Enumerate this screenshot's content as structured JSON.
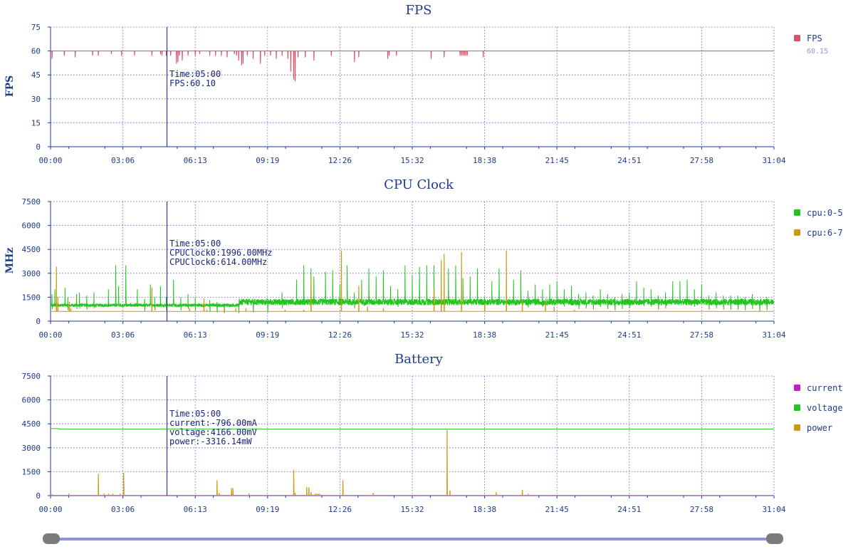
{
  "time_axis": {
    "ticks": [
      "00:00",
      "03:06",
      "06:13",
      "09:19",
      "12:26",
      "15:32",
      "18:38",
      "21:45",
      "24:51",
      "27:58",
      "31:04"
    ],
    "max_seconds": 1864
  },
  "cursor": {
    "time_seconds": 300
  },
  "colors": {
    "fps": "#d9506a",
    "cpu0_5": "#22c41e",
    "cpu6_7": "#cc9a10",
    "current": "#c81ac8",
    "voltage": "#22c41e",
    "power": "#cc9a10",
    "cursor": "#1a237e",
    "axis": "#1f3b8c"
  },
  "chart_data": [
    {
      "type": "line",
      "title": "FPS",
      "ylabel": "FPS",
      "ylim": [
        0,
        75
      ],
      "yticks": [
        "75",
        "60",
        "45",
        "30",
        "15",
        "0"
      ],
      "grid": true,
      "legend_position": "right",
      "series": [
        {
          "name": "FPS",
          "baseline": 60,
          "dips": [
            [
              10,
              55
            ],
            [
              95,
              57
            ],
            [
              170,
              56
            ],
            [
              290,
              57
            ],
            [
              330,
              57
            ],
            [
              420,
              58
            ],
            [
              490,
              57
            ],
            [
              580,
              57
            ],
            [
              700,
              57
            ],
            [
              760,
              58
            ],
            [
              770,
              57
            ],
            [
              800,
              57
            ],
            [
              830,
              57
            ],
            [
              870,
              52
            ],
            [
              880,
              53
            ],
            [
              890,
              57
            ],
            [
              910,
              54
            ],
            [
              950,
              57
            ],
            [
              1000,
              57
            ],
            [
              1030,
              58
            ],
            [
              1100,
              57
            ],
            [
              1140,
              57
            ],
            [
              1180,
              57
            ],
            [
              1220,
              56
            ],
            [
              1270,
              58
            ],
            [
              1285,
              57
            ],
            [
              1300,
              54
            ],
            [
              1320,
              51
            ],
            [
              1330,
              52
            ],
            [
              1360,
              57
            ],
            [
              1400,
              55
            ],
            [
              1450,
              52
            ],
            [
              1480,
              57
            ],
            [
              1520,
              57
            ],
            [
              1560,
              55
            ],
            [
              1600,
              57
            ],
            [
              1640,
              55
            ],
            [
              1660,
              47
            ],
            [
              1680,
              42
            ],
            [
              1690,
              41
            ],
            [
              1710,
              56
            ],
            [
              1760,
              56
            ],
            [
              1820,
              54
            ],
            [
              1940,
              57
            ],
            [
              2100,
              53
            ],
            [
              2130,
              56
            ],
            [
              2330,
              55
            ],
            [
              2340,
              57
            ],
            [
              2390,
              57
            ],
            [
              2630,
              55
            ],
            [
              2720,
              56
            ],
            [
              2830,
              57
            ],
            [
              2840,
              57
            ],
            [
              2850,
              57
            ],
            [
              2860,
              57
            ],
            [
              2870,
              57
            ],
            [
              2880,
              57
            ],
            [
              2990,
              56
            ]
          ]
        }
      ],
      "legend_value": "60.15",
      "tooltip": [
        "Time:05:00",
        "FPS:60.10"
      ]
    },
    {
      "type": "line",
      "title": "CPU Clock",
      "ylabel": "MHz",
      "ylim": [
        0,
        7500
      ],
      "yticks": [
        "7500",
        "6000",
        "4500",
        "3000",
        "1500",
        "0"
      ],
      "grid": true,
      "legend_position": "right",
      "series": [
        {
          "name": "cpu:0-5",
          "baseline": 900,
          "base_high": 1300,
          "peaks": [
            [
              10,
              1700
            ],
            [
              30,
              2000
            ],
            [
              100,
              2100
            ],
            [
              120,
              1500
            ],
            [
              180,
              1700
            ],
            [
              200,
              1800
            ],
            [
              250,
              1600
            ],
            [
              300,
              1800
            ],
            [
              400,
              2000
            ],
            [
              450,
              3500
            ],
            [
              470,
              2200
            ],
            [
              520,
              3500
            ],
            [
              600,
              2000
            ],
            [
              650,
              1400
            ],
            [
              690,
              2300
            ],
            [
              720,
              1500
            ],
            [
              760,
              2200
            ],
            [
              800,
              1500
            ],
            [
              850,
              2600
            ],
            [
              900,
              1500
            ],
            [
              950,
              1700
            ],
            [
              1000,
              1500
            ],
            [
              1100,
              1300
            ],
            [
              1150,
              1200
            ],
            [
              1200,
              1100
            ],
            [
              1300,
              1100
            ],
            [
              1400,
              1200
            ],
            [
              1500,
              1200
            ],
            [
              1600,
              1800
            ],
            [
              1700,
              2600
            ],
            [
              1750,
              3500
            ],
            [
              1800,
              3300
            ],
            [
              1820,
              2800
            ],
            [
              1900,
              3100
            ],
            [
              1950,
              3200
            ],
            [
              2000,
              2300
            ],
            [
              2050,
              3500
            ],
            [
              2100,
              1800
            ],
            [
              2150,
              2600
            ],
            [
              2200,
              3300
            ],
            [
              2250,
              2800
            ],
            [
              2300,
              3200
            ],
            [
              2350,
              2200
            ],
            [
              2400,
              2000
            ],
            [
              2450,
              3500
            ],
            [
              2500,
              2900
            ],
            [
              2550,
              3400
            ],
            [
              2600,
              3500
            ],
            [
              2650,
              3500
            ],
            [
              2700,
              1800
            ],
            [
              2750,
              3300
            ],
            [
              2800,
              3500
            ],
            [
              2850,
              2700
            ],
            [
              2900,
              2800
            ],
            [
              2950,
              3300
            ],
            [
              3000,
              1500
            ],
            [
              3050,
              2500
            ],
            [
              3100,
              3300
            ],
            [
              3150,
              2400
            ],
            [
              3200,
              2600
            ],
            [
              3250,
              3200
            ],
            [
              3300,
              1900
            ],
            [
              3350,
              2300
            ],
            [
              3400,
              2000
            ],
            [
              3450,
              2300
            ],
            [
              3500,
              2500
            ],
            [
              3550,
              2000
            ],
            [
              3600,
              2200
            ],
            [
              3650,
              1700
            ],
            [
              3700,
              1800
            ],
            [
              3750,
              1600
            ],
            [
              3800,
              2000
            ],
            [
              3850,
              1700
            ],
            [
              3900,
              1500
            ],
            [
              3950,
              1700
            ],
            [
              4000,
              1800
            ],
            [
              4050,
              2500
            ],
            [
              4100,
              2100
            ],
            [
              4150,
              2000
            ],
            [
              4200,
              1600
            ],
            [
              4250,
              1800
            ],
            [
              4300,
              2500
            ],
            [
              4350,
              2500
            ],
            [
              4400,
              2600
            ],
            [
              4450,
              2000
            ],
            [
              4500,
              2300
            ],
            [
              4550,
              1600
            ],
            [
              4600,
              1800
            ],
            [
              4650,
              1600
            ],
            [
              4700,
              1600
            ],
            [
              4750,
              1600
            ],
            [
              4800,
              1500
            ],
            [
              4850,
              1700
            ],
            [
              4900,
              1300
            ],
            [
              4950,
              1500
            ]
          ]
        },
        {
          "name": "cpu:6-7",
          "baseline": 614,
          "spikes": [
            [
              40,
              3400
            ],
            [
              50,
              1500
            ],
            [
              100,
              600
            ],
            [
              130,
              1200
            ],
            [
              140,
              800
            ],
            [
              700,
              2100
            ],
            [
              960,
              800
            ],
            [
              1060,
              1400
            ],
            [
              1080,
              700
            ],
            [
              1200,
              800
            ],
            [
              1280,
              800
            ],
            [
              1350,
              800
            ],
            [
              1620,
              700
            ],
            [
              1750,
              700
            ],
            [
              1800,
              2700
            ],
            [
              2010,
              4400
            ],
            [
              2130,
              2200
            ],
            [
              2190,
              900
            ],
            [
              2300,
              800
            ],
            [
              2650,
              2000
            ],
            [
              2700,
              3800
            ],
            [
              2720,
              4200
            ],
            [
              2840,
              4300
            ],
            [
              3000,
              1100
            ],
            [
              3150,
              4400
            ],
            [
              3260,
              1300
            ],
            [
              3420,
              1200
            ],
            [
              3480,
              900
            ],
            [
              3620,
              700
            ]
          ]
        }
      ],
      "tooltip": [
        "Time:05:00",
        "CPUClock0:1996.00MHz",
        "CPUClock6:614.00MHz"
      ]
    },
    {
      "type": "line",
      "title": "Battery",
      "ylabel": "",
      "ylim": [
        0,
        7500
      ],
      "yticks": [
        "7500",
        "6000",
        "4500",
        "3000",
        "1500",
        "0"
      ],
      "grid": true,
      "legend_position": "right",
      "series": [
        {
          "name": "current",
          "baseline": 10
        },
        {
          "name": "voltage",
          "start": 4200,
          "step_at": 60,
          "after": 4166
        },
        {
          "name": "power",
          "baseline": 20,
          "spikes": [
            [
              10,
              80
            ],
            [
              125,
              100
            ],
            [
              330,
              1350
            ],
            [
              370,
              100
            ],
            [
              400,
              100
            ],
            [
              430,
              100
            ],
            [
              480,
              100
            ],
            [
              505,
              1400
            ],
            [
              1150,
              950
            ],
            [
              1165,
              150
            ],
            [
              1250,
              450
            ],
            [
              1260,
              450
            ],
            [
              1370,
              120
            ],
            [
              1680,
              1600
            ],
            [
              1690,
              150
            ],
            [
              1770,
              500
            ],
            [
              1785,
              500
            ],
            [
              1800,
              200
            ],
            [
              1830,
              100
            ],
            [
              1840,
              100
            ],
            [
              1850,
              100
            ],
            [
              1860,
              100
            ],
            [
              2020,
              950
            ],
            [
              2230,
              150
            ],
            [
              2740,
              4100
            ],
            [
              2760,
              300
            ],
            [
              3080,
              200
            ],
            [
              3260,
              350
            ],
            [
              3300,
              100
            ]
          ]
        }
      ],
      "tooltip": [
        "Time:05:00",
        "current:-796.00mA",
        "voltage:4166.00mV",
        "power:-3316.14mW"
      ]
    }
  ]
}
